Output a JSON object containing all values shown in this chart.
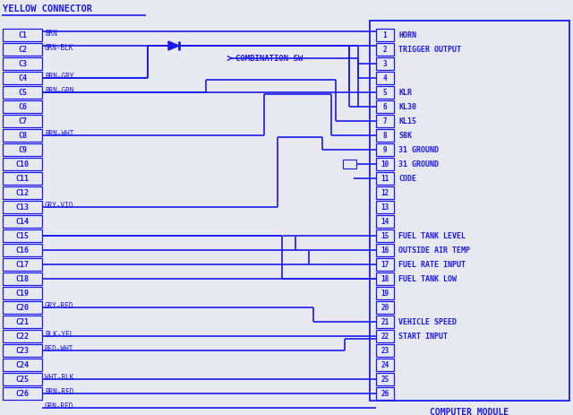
{
  "bg_color": "#e8e8f0",
  "line_color": "#1a1aee",
  "title": "YELLOW CONNECTOR",
  "left_connector_pins": [
    [
      "C1",
      "BRN",
      true
    ],
    [
      "C2",
      "GRN-BLK",
      true
    ],
    [
      "C3",
      "",
      false
    ],
    [
      "C4",
      "BRN-GRY",
      true
    ],
    [
      "C5",
      "BRN-GRN",
      true
    ],
    [
      "C6",
      "",
      false
    ],
    [
      "C7",
      "",
      false
    ],
    [
      "C8",
      "BRN-WHT",
      true
    ],
    [
      "C9",
      "",
      false
    ],
    [
      "C10",
      "",
      false
    ],
    [
      "C11",
      "",
      false
    ],
    [
      "C12",
      "",
      false
    ],
    [
      "C13",
      "GRY-VIO",
      true
    ],
    [
      "C14",
      "",
      false
    ],
    [
      "C15",
      "",
      false
    ],
    [
      "C16",
      "",
      false
    ],
    [
      "C17",
      "",
      false
    ],
    [
      "C18",
      "",
      false
    ],
    [
      "C19",
      "",
      false
    ],
    [
      "C20",
      "GRY-RED",
      true
    ],
    [
      "C21",
      "",
      false
    ],
    [
      "C22",
      "BLK-YEL",
      true
    ],
    [
      "C23",
      "RED-WHT",
      true
    ],
    [
      "C24",
      "",
      false
    ],
    [
      "C25",
      "WHT-BLK",
      true
    ],
    [
      "C26",
      "BRN-RED",
      true
    ],
    [
      "",
      "GRN-RED",
      false
    ]
  ],
  "right_connector_pins": [
    [
      "1",
      "HORN",
      true
    ],
    [
      "2",
      "TRIGGER OUTPUT",
      true
    ],
    [
      "3",
      "",
      false
    ],
    [
      "4",
      "",
      false
    ],
    [
      "5",
      "KLR",
      true
    ],
    [
      "6",
      "KL30",
      true
    ],
    [
      "7",
      "KL15",
      true
    ],
    [
      "8",
      "S8K",
      true
    ],
    [
      "9",
      "31 GROUND",
      true
    ],
    [
      "10",
      "31 GROUND",
      true
    ],
    [
      "11",
      "CODE",
      true
    ],
    [
      "12",
      "",
      false
    ],
    [
      "13",
      "",
      false
    ],
    [
      "14",
      "",
      false
    ],
    [
      "15",
      "FUEL TANK LEVEL",
      true
    ],
    [
      "16",
      "OUTSIDE AIR TEMP",
      true
    ],
    [
      "17",
      "FUEL RATE INPUT",
      true
    ],
    [
      "18",
      "FUEL TANK LOW",
      true
    ],
    [
      "19",
      "",
      false
    ],
    [
      "20",
      "",
      false
    ],
    [
      "21",
      "VEHICLE SPEED",
      true
    ],
    [
      "22",
      "START INPUT",
      true
    ],
    [
      "23",
      "",
      false
    ],
    [
      "24",
      "",
      false
    ],
    [
      "25",
      "",
      false
    ],
    [
      "26",
      "",
      false
    ]
  ]
}
